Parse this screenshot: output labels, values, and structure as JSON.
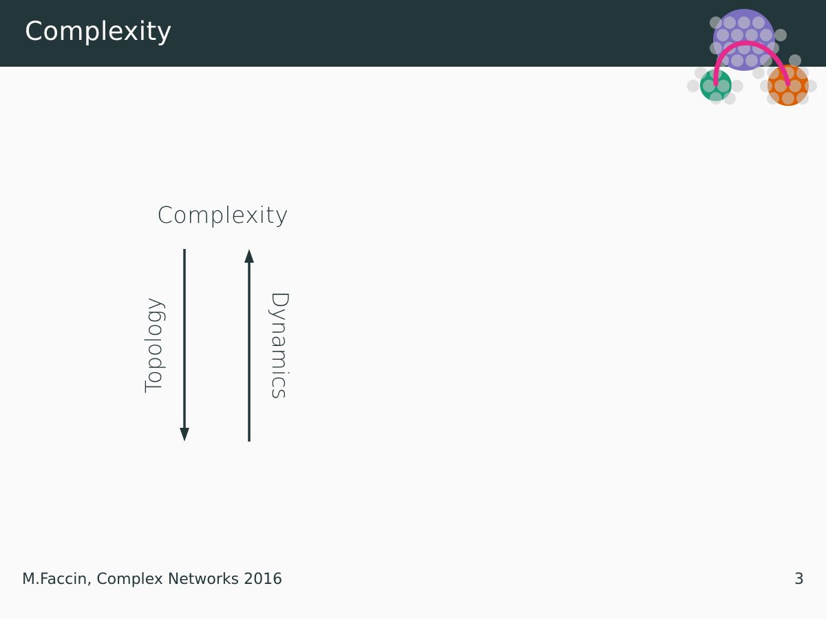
{
  "slide": {
    "title": "Complexity"
  },
  "diagram": {
    "top_label": "Complexity",
    "left_arrow_label": "Topology",
    "right_arrow_label": "Dynamics",
    "left_arrow_direction": "down",
    "right_arrow_direction": "up"
  },
  "footer": {
    "text": "M.Faccin, Complex Networks 2016",
    "page_number": "3"
  },
  "colors": {
    "header_bg": "#23373b",
    "background": "#fafafa",
    "text": "#23373b",
    "logo_purple": "#7b6fbf",
    "logo_green": "#1b9e77",
    "logo_orange": "#d95f02",
    "logo_arc": "#e7298a"
  },
  "icons": {
    "logo": "network-communities-logo"
  }
}
